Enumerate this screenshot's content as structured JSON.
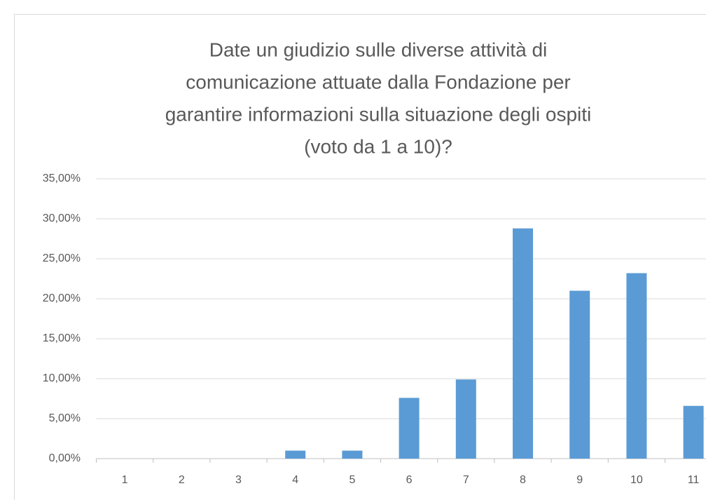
{
  "chart_data": {
    "type": "bar",
    "title": [
      "Date un giudizio sulle diverse attività di",
      "comunicazione attuate dalla Fondazione per",
      "garantire informazioni sulla situazione degli ospiti",
      "(voto da 1 a 10)?"
    ],
    "categories": [
      "1",
      "2",
      "3",
      "4",
      "5",
      "6",
      "7",
      "8",
      "9",
      "10",
      "11"
    ],
    "values": [
      0,
      0,
      0,
      1,
      1,
      7.6,
      9.9,
      28.8,
      21,
      23.2,
      6.6
    ],
    "color": "#5b9bd5",
    "ylim": [
      0,
      35
    ],
    "yticks": [
      {
        "value": 0,
        "label": "0,00%"
      },
      {
        "value": 5,
        "label": "5,00%"
      },
      {
        "value": 10,
        "label": "10,00%"
      },
      {
        "value": 15,
        "label": "15,00%"
      },
      {
        "value": 20,
        "label": "20,00%"
      },
      {
        "value": 25,
        "label": "25,00%"
      },
      {
        "value": 30,
        "label": "30,00%"
      },
      {
        "value": 35,
        "label": "35,00%"
      }
    ],
    "grid": true
  }
}
